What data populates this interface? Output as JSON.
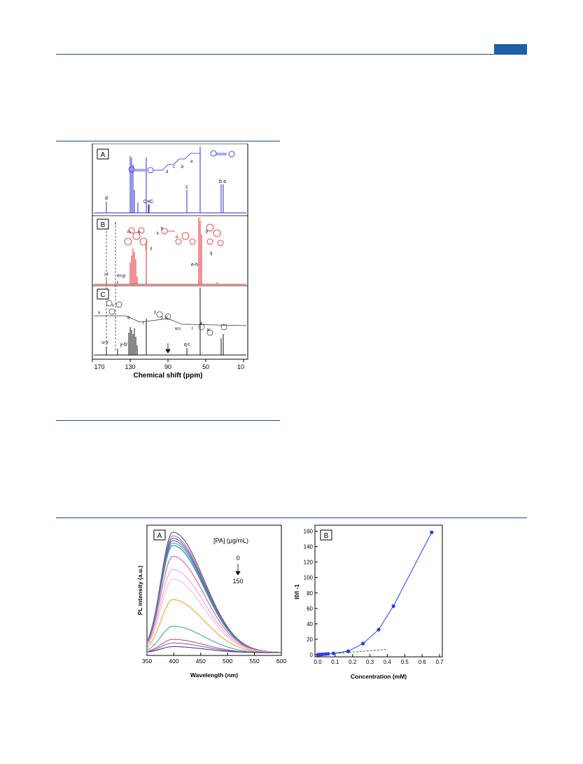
{
  "nmr_figure": {
    "panels": [
      {
        "label": "A",
        "color": "#2b2bd4",
        "tags": [
          {
            "text": "d"
          },
          {
            "text": "C≡C"
          },
          {
            "text": "c"
          },
          {
            "text": "b a"
          }
        ],
        "structure_letters": [
          "a",
          "b",
          "c",
          "d"
        ]
      },
      {
        "label": "B",
        "color": "#e0262b",
        "tags": [
          {
            "text": "i-l"
          },
          {
            "text": "m-p"
          },
          {
            "text": "e-h"
          },
          {
            "text": "f"
          }
        ],
        "structure_letters": [
          "i",
          "m",
          "n",
          "j",
          "h",
          "k",
          "o",
          "p",
          "g"
        ]
      },
      {
        "label": "C",
        "color": "#111111",
        "tags": [
          {
            "text": "u-x"
          },
          {
            "text": "y-b'"
          },
          {
            "text": "q-t"
          }
        ],
        "structure_letters": [
          "u",
          "v",
          "q",
          "r",
          "y",
          "z",
          "a'",
          "w",
          "s",
          "t",
          "x",
          "b'"
        ]
      }
    ],
    "x_ticks": [
      "170",
      "130",
      "90",
      "50",
      "10"
    ],
    "x_label": "Chemical shift (ppm)",
    "solvent_mark": "*"
  },
  "figure2": {
    "panelA": {
      "label": "A",
      "xlabel": "Wavelength (nm)",
      "ylabel": "PL intensity (a.u.)",
      "x_ticks": [
        "350",
        "400",
        "450",
        "500",
        "550",
        "600"
      ],
      "legend_title": "[PA] (µg/mL)",
      "legend_start": "0",
      "legend_end": "150"
    },
    "panelB": {
      "label": "B",
      "xlabel": "Concentration (mM)",
      "ylabel": "I0/I -1",
      "x_ticks": [
        "0.0",
        "0.1",
        "0.2",
        "0.3",
        "0.4",
        "0.5",
        "0.6",
        "0.7"
      ],
      "y_ticks": [
        "0",
        "20",
        "40",
        "60",
        "80",
        "100",
        "120",
        "140",
        "160"
      ]
    }
  },
  "chart_data": [
    {
      "type": "line",
      "title": "",
      "xlabel": "Wavelength (nm)",
      "ylabel": "PL intensity (a.u.)",
      "xlim": [
        350,
        600
      ],
      "legend": "[PA] (µg/mL) 0 → 150",
      "series_peak_nm": 398,
      "series": [
        {
          "color": "#555555",
          "values": [
            1.0
          ]
        },
        {
          "color": "#c06bbd",
          "values": [
            0.97
          ]
        },
        {
          "color": "#7a4fb0",
          "values": [
            0.95
          ]
        },
        {
          "color": "#3b6fb0",
          "values": [
            0.93
          ]
        },
        {
          "color": "#4aa7b5",
          "values": [
            0.91
          ]
        },
        {
          "color": "#2c8c9a",
          "values": [
            0.89
          ]
        },
        {
          "color": "#e05a8a",
          "values": [
            0.8
          ]
        },
        {
          "color": "#f0a0e8",
          "values": [
            0.69
          ]
        },
        {
          "color": "#f4b8d8",
          "values": [
            0.61
          ]
        },
        {
          "color": "#f0a030",
          "values": [
            0.44
          ]
        },
        {
          "color": "#3ba8a8",
          "values": [
            0.22
          ]
        },
        {
          "color": "#b05a80",
          "values": [
            0.11
          ]
        },
        {
          "color": "#8c6a9a",
          "values": [
            0.08
          ]
        },
        {
          "color": "#4c3c8c",
          "values": [
            0.05
          ]
        }
      ]
    },
    {
      "type": "scatter",
      "title": "",
      "xlabel": "Concentration (mM)",
      "ylabel": "I0/I -1",
      "xlim": [
        0,
        0.7
      ],
      "ylim": [
        0,
        165
      ],
      "color": "#2a3fe0",
      "x": [
        0.0,
        0.01,
        0.02,
        0.03,
        0.045,
        0.06,
        0.09,
        0.175,
        0.26,
        0.35,
        0.435,
        0.655
      ],
      "y": [
        0.0,
        0.2,
        0.4,
        0.6,
        0.9,
        1.2,
        1.8,
        4.5,
        14.5,
        32.5,
        63,
        158.5
      ],
      "linear_fit": {
        "x": [
          0.0,
          0.4
        ],
        "y": [
          0.0,
          7.0
        ],
        "style": "dashed"
      }
    }
  ]
}
